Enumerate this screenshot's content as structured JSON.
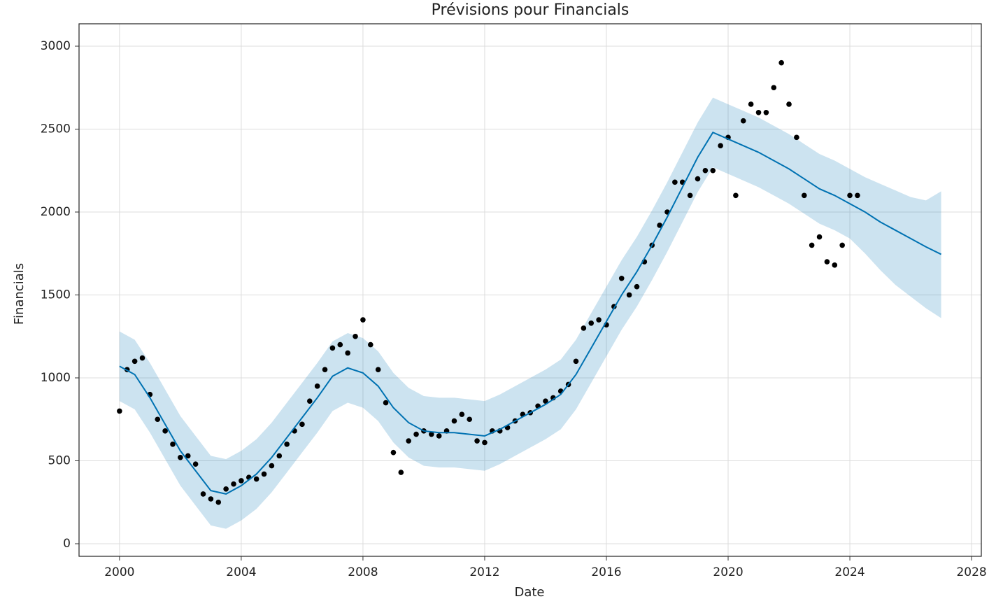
{
  "chart_data": {
    "type": "forecast",
    "title": "Prévisions pour Financials",
    "x_label": "Date",
    "y_label": "Financials",
    "xlim": [
      1998.67,
      2028.32
    ],
    "ylim": [
      -76,
      3135
    ],
    "xticks": [
      2000,
      2004,
      2008,
      2012,
      2016,
      2020,
      2024,
      2028
    ],
    "yticks": [
      0,
      500,
      1000,
      1500,
      2000,
      2500,
      3000
    ],
    "grid": true,
    "observed": {
      "color": "#000000",
      "x": [
        2000,
        2000.25,
        2000.5,
        2000.75,
        2001,
        2001.25,
        2001.5,
        2001.75,
        2002,
        2002.25,
        2002.5,
        2002.75,
        2003,
        2003.25,
        2003.5,
        2003.75,
        2004,
        2004.25,
        2004.5,
        2004.75,
        2005,
        2005.25,
        2005.5,
        2005.75,
        2006,
        2006.25,
        2006.5,
        2006.75,
        2007,
        2007.25,
        2007.5,
        2007.75,
        2008,
        2008.25,
        2008.5,
        2008.75,
        2009,
        2009.25,
        2009.5,
        2009.75,
        2010,
        2010.25,
        2010.5,
        2010.75,
        2011,
        2011.25,
        2011.5,
        2011.75,
        2012,
        2012.25,
        2012.5,
        2012.75,
        2013,
        2013.25,
        2013.5,
        2013.75,
        2014,
        2014.25,
        2014.5,
        2014.75,
        2015,
        2015.25,
        2015.5,
        2015.75,
        2016,
        2016.25,
        2016.5,
        2016.75,
        2017,
        2017.25,
        2017.5,
        2017.75,
        2018,
        2018.25,
        2018.5,
        2018.75,
        2019,
        2019.25,
        2019.5,
        2019.75,
        2020,
        2020.25,
        2020.5,
        2020.75,
        2021,
        2021.25,
        2021.5,
        2021.75,
        2022,
        2022.25,
        2022.5,
        2022.75,
        2023,
        2023.25,
        2023.5,
        2023.75,
        2024,
        2024.25
      ],
      "values": [
        800,
        1050,
        1100,
        1120,
        900,
        750,
        680,
        600,
        520,
        530,
        480,
        300,
        270,
        250,
        330,
        360,
        380,
        400,
        390,
        420,
        470,
        530,
        600,
        680,
        720,
        860,
        950,
        1050,
        1180,
        1200,
        1150,
        1250,
        1350,
        1200,
        1050,
        850,
        550,
        430,
        620,
        660,
        680,
        660,
        650,
        680,
        740,
        780,
        750,
        620,
        610,
        680,
        680,
        700,
        740,
        780,
        790,
        830,
        860,
        880,
        920,
        960,
        1100,
        1300,
        1330,
        1350,
        1320,
        1430,
        1600,
        1500,
        1550,
        1700,
        1800,
        1920,
        2000,
        2180,
        2180,
        2100,
        2200,
        2250,
        2250,
        2400,
        2450,
        2100,
        2550,
        2650,
        2600,
        2600,
        2750,
        2900,
        2650,
        2450,
        2100,
        1800,
        1850,
        1700,
        1680,
        1800,
        2100,
        2100
      ]
    },
    "forecast": {
      "color": "#0072b2",
      "x": [
        2000,
        2000.5,
        2001,
        2001.5,
        2002,
        2002.5,
        2003,
        2003.5,
        2004,
        2004.5,
        2005,
        2005.5,
        2006,
        2006.5,
        2007,
        2007.5,
        2008,
        2008.5,
        2009,
        2009.5,
        2010,
        2010.5,
        2011,
        2011.5,
        2012,
        2012.5,
        2013,
        2013.5,
        2014,
        2014.5,
        2015,
        2015.5,
        2016,
        2016.5,
        2017,
        2017.5,
        2018,
        2018.5,
        2019,
        2019.5,
        2020,
        2020.5,
        2021,
        2021.5,
        2022,
        2022.5,
        2023,
        2023.5,
        2024,
        2024.5,
        2025,
        2025.5,
        2026,
        2026.5,
        2027
      ],
      "values": [
        1070,
        1020,
        880,
        720,
        560,
        440,
        320,
        300,
        350,
        420,
        520,
        640,
        760,
        880,
        1010,
        1060,
        1030,
        950,
        820,
        730,
        680,
        670,
        670,
        660,
        650,
        690,
        740,
        790,
        840,
        900,
        1020,
        1180,
        1340,
        1500,
        1640,
        1800,
        1970,
        2150,
        2330,
        2480,
        2440,
        2400,
        2360,
        2310,
        2260,
        2200,
        2140,
        2100,
        2050,
        2000,
        1940,
        1890,
        1840,
        1790,
        1745
      ],
      "lower": [
        860,
        810,
        670,
        510,
        350,
        230,
        110,
        90,
        140,
        210,
        310,
        430,
        550,
        670,
        800,
        850,
        820,
        740,
        610,
        520,
        470,
        460,
        460,
        450,
        440,
        480,
        530,
        580,
        630,
        690,
        810,
        970,
        1130,
        1290,
        1430,
        1590,
        1760,
        1940,
        2120,
        2270,
        2230,
        2190,
        2150,
        2100,
        2050,
        1990,
        1930,
        1890,
        1840,
        1750,
        1650,
        1560,
        1490,
        1420,
        1360
      ],
      "upper": [
        1280,
        1230,
        1090,
        930,
        770,
        650,
        530,
        510,
        560,
        630,
        730,
        850,
        970,
        1090,
        1220,
        1270,
        1240,
        1160,
        1030,
        940,
        890,
        880,
        880,
        870,
        860,
        900,
        950,
        1000,
        1050,
        1110,
        1230,
        1390,
        1550,
        1710,
        1850,
        2010,
        2180,
        2360,
        2540,
        2690,
        2650,
        2610,
        2570,
        2520,
        2470,
        2410,
        2350,
        2310,
        2260,
        2210,
        2170,
        2130,
        2090,
        2070,
        2125
      ]
    }
  }
}
